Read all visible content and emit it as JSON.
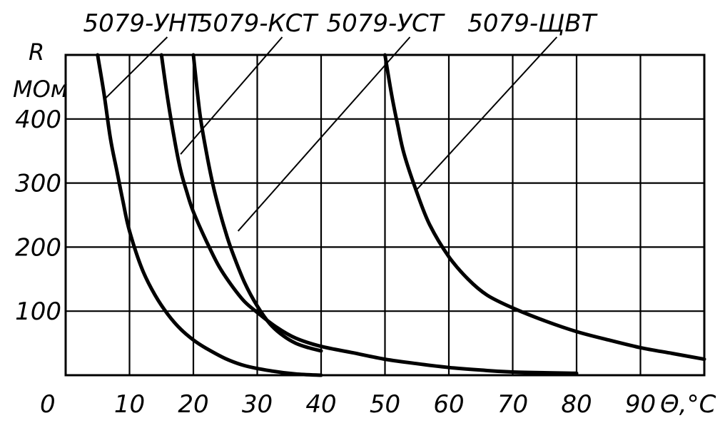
{
  "chart_data": {
    "type": "line",
    "title": "",
    "xlabel": "Θ,°C",
    "ylabel_line1": "R",
    "ylabel_line2": "МОм",
    "xlim": [
      0,
      100
    ],
    "ylim": [
      0,
      500
    ],
    "x_ticks": [
      "0",
      "10",
      "20",
      "30",
      "40",
      "50",
      "60",
      "70",
      "80",
      "90"
    ],
    "y_ticks": [
      "100",
      "200",
      "300",
      "400"
    ],
    "grid": true,
    "series": [
      {
        "name": "5079-УНТ",
        "x": [
          5,
          6,
          7,
          8,
          9,
          10,
          12,
          14,
          16,
          18,
          20,
          22,
          25,
          28,
          32,
          36,
          40
        ],
        "y": [
          500,
          440,
          370,
          320,
          270,
          225,
          165,
          125,
          95,
          72,
          55,
          42,
          26,
          15,
          7,
          2,
          0
        ]
      },
      {
        "name": "5079-КСТ",
        "x": [
          15,
          16,
          17,
          18,
          19,
          20,
          22,
          24,
          26,
          28,
          30,
          33,
          36,
          40,
          45,
          50,
          55,
          60,
          65,
          70,
          80
        ],
        "y": [
          500,
          430,
          370,
          320,
          285,
          255,
          210,
          170,
          140,
          115,
          98,
          75,
          58,
          45,
          35,
          25,
          18,
          12,
          8,
          5,
          3
        ]
      },
      {
        "name": "5079-УСТ",
        "x": [
          20,
          21,
          22,
          23,
          24,
          25,
          26,
          28,
          30,
          32,
          34,
          36,
          38,
          40
        ],
        "y": [
          500,
          410,
          350,
          300,
          260,
          225,
          195,
          145,
          108,
          80,
          62,
          50,
          43,
          38
        ]
      },
      {
        "name": "5079-ЩВТ",
        "x": [
          50,
          51,
          52,
          53,
          55,
          57,
          60,
          63,
          66,
          70,
          75,
          80,
          85,
          90,
          95,
          100
        ],
        "y": [
          500,
          440,
          390,
          345,
          285,
          235,
          185,
          150,
          125,
          105,
          85,
          68,
          55,
          43,
          34,
          25
        ]
      }
    ],
    "annotations": [
      {
        "label": "5079-УНТ",
        "point": [
          6,
          430
        ],
        "label_x": 12
      },
      {
        "label": "5079-КСТ",
        "point": [
          18,
          345
        ],
        "label_x": 30
      },
      {
        "label": "5079-УСТ",
        "point": [
          27,
          225
        ],
        "label_x": 50
      },
      {
        "label": "5079-ЩВТ",
        "point": [
          55,
          290
        ],
        "label_x": 73
      }
    ]
  }
}
